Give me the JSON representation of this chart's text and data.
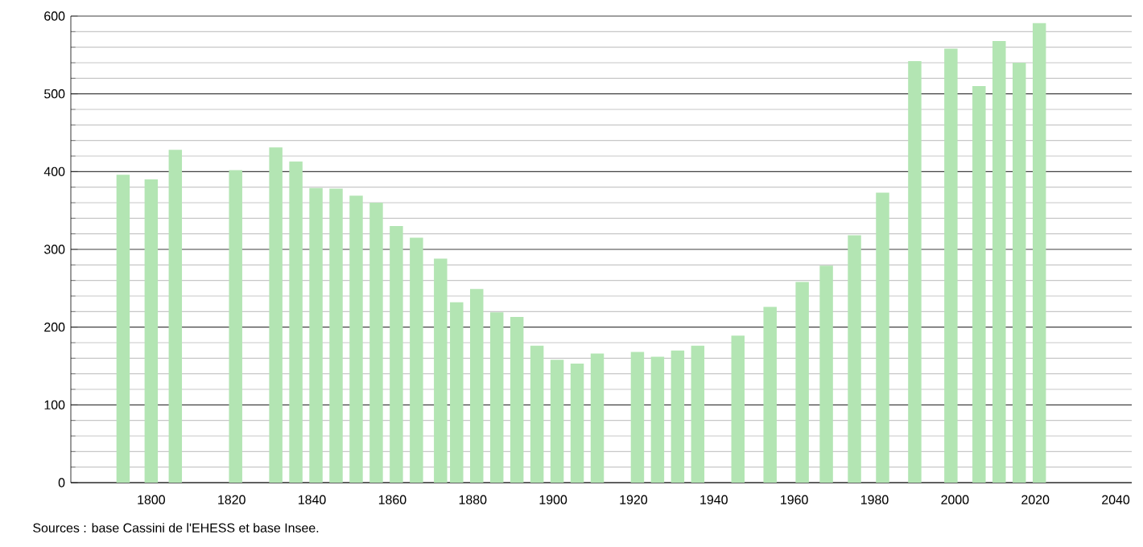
{
  "chart_data": {
    "type": "bar",
    "x": [
      1793,
      1800,
      1806,
      1821,
      1831,
      1836,
      1841,
      1846,
      1851,
      1856,
      1861,
      1866,
      1872,
      1876,
      1881,
      1886,
      1891,
      1896,
      1901,
      1906,
      1911,
      1921,
      1926,
      1931,
      1936,
      1946,
      1954,
      1962,
      1968,
      1975,
      1982,
      1990,
      1999,
      2006,
      2011,
      2016,
      2021
    ],
    "values": [
      396,
      390,
      428,
      402,
      431,
      413,
      379,
      378,
      369,
      360,
      330,
      315,
      288,
      232,
      249,
      219,
      213,
      176,
      158,
      153,
      166,
      168,
      162,
      170,
      176,
      189,
      226,
      258,
      279,
      318,
      373,
      542,
      558,
      510,
      568,
      540,
      591
    ],
    "color": "#b3e5b3",
    "xlim": [
      1780,
      2044
    ],
    "ylim": [
      0,
      600
    ],
    "xticks": [
      1800,
      1820,
      1840,
      1860,
      1880,
      1900,
      1920,
      1940,
      1960,
      1980,
      2000,
      2020,
      2040
    ],
    "yticks": [
      0,
      100,
      200,
      300,
      400,
      500,
      600
    ],
    "grid": "y",
    "annotations": [
      "Sources : base Cassini de l'EHESS et base Insee."
    ]
  }
}
